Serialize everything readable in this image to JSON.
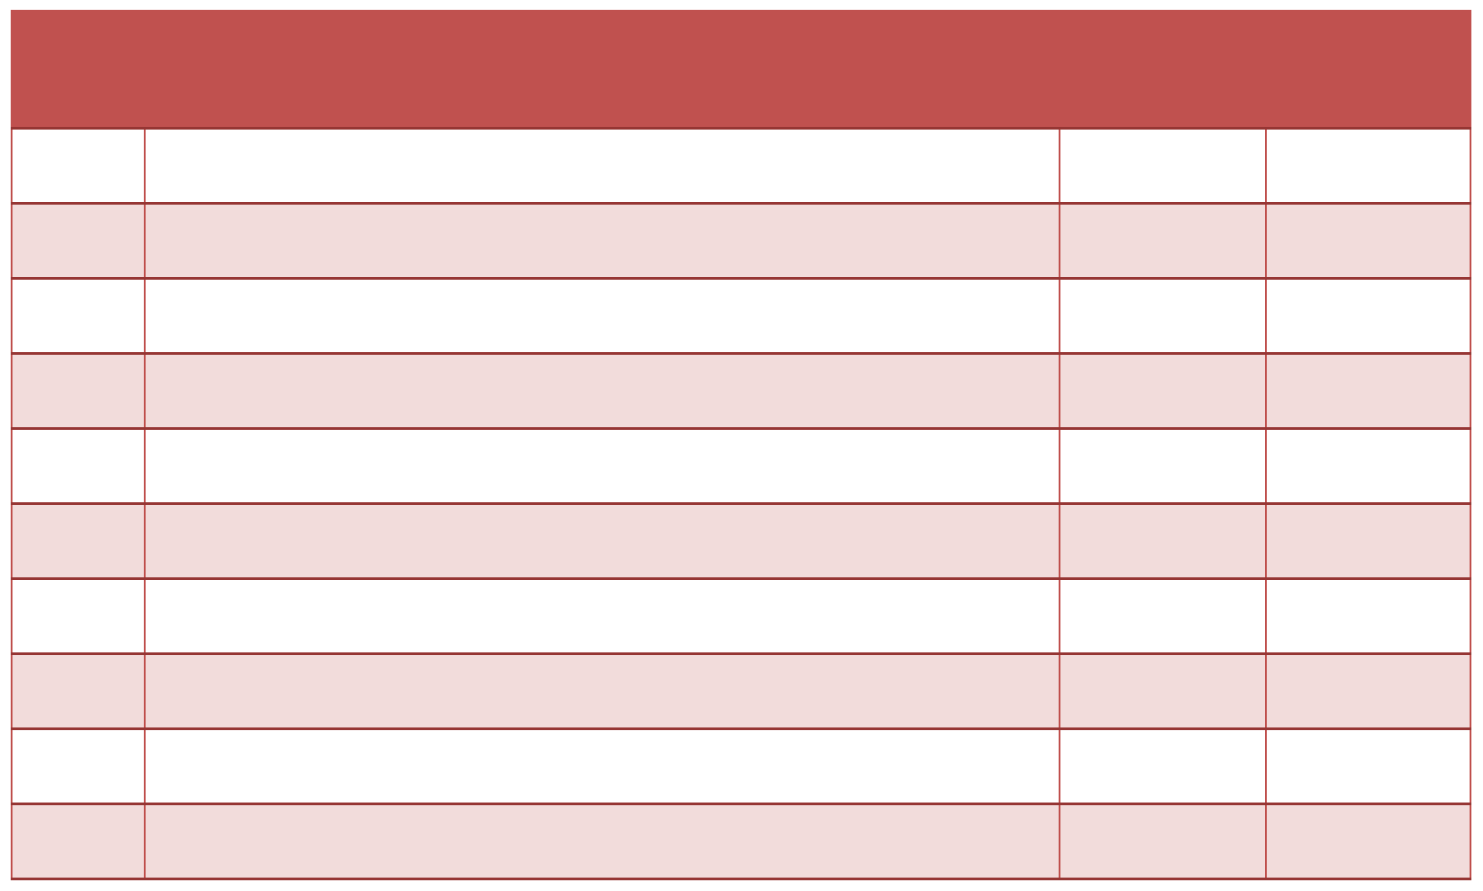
{
  "page": {
    "background": "#ffffff"
  },
  "table": {
    "description": "empty banded table with red header band, no visible text",
    "header": {
      "label": ""
    },
    "columns": [
      {
        "id": "col-1",
        "width_pct": 9.11
      },
      {
        "id": "col-2",
        "width_pct": 62.75
      },
      {
        "id": "col-3",
        "width_pct": 14.13
      },
      {
        "id": "col-4",
        "width_pct": 14.01
      }
    ],
    "rows": [
      {
        "cells": [
          "",
          "",
          "",
          ""
        ]
      },
      {
        "cells": [
          "",
          "",
          "",
          ""
        ]
      },
      {
        "cells": [
          "",
          "",
          "",
          ""
        ]
      },
      {
        "cells": [
          "",
          "",
          "",
          ""
        ]
      },
      {
        "cells": [
          "",
          "",
          "",
          ""
        ]
      },
      {
        "cells": [
          "",
          "",
          "",
          ""
        ]
      },
      {
        "cells": [
          "",
          "",
          "",
          ""
        ]
      },
      {
        "cells": [
          "",
          "",
          "",
          ""
        ]
      },
      {
        "cells": [
          "",
          "",
          "",
          ""
        ]
      },
      {
        "cells": [
          "",
          "",
          "",
          ""
        ]
      }
    ],
    "colors": {
      "header_fill": "#c0514f",
      "band_fill": "#f2dcdb",
      "plain_fill": "#ffffff",
      "vertical_border": "#bf4f4c",
      "horizontal_border": "#963634"
    }
  }
}
